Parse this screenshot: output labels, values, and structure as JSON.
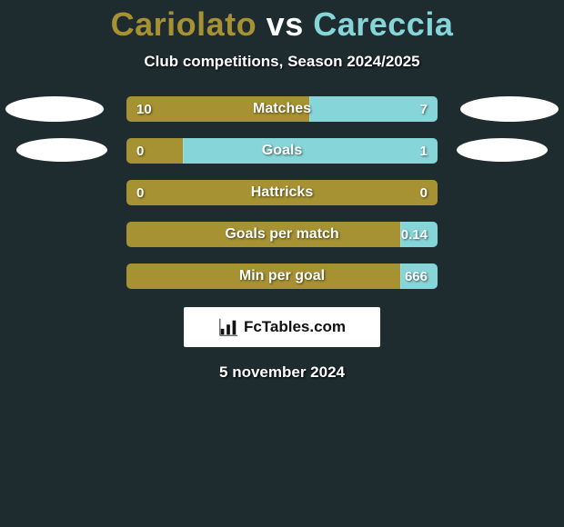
{
  "title": {
    "player1": "Cariolato",
    "vs": "vs",
    "player2": "Careccia",
    "color1": "#a69232",
    "color_vs": "#ffffff",
    "color2": "#86d5d8"
  },
  "subtitle": "Club competitions, Season 2024/2025",
  "colors": {
    "left": "#a69232",
    "right": "#86d5d8",
    "background": "#1e2c2f"
  },
  "stats": [
    {
      "label": "Matches",
      "left_text": "10",
      "right_text": "7",
      "left_pct": 58.8
    },
    {
      "label": "Goals",
      "left_text": "0",
      "right_text": "1",
      "left_pct": 18.0
    },
    {
      "label": "Hattricks",
      "left_text": "0",
      "right_text": "0",
      "left_pct": 100.0
    },
    {
      "label": "Goals per match",
      "left_text": "",
      "right_text": "0.14",
      "left_pct": 88.0
    },
    {
      "label": "Min per goal",
      "left_text": "",
      "right_text": "666",
      "left_pct": 88.0
    }
  ],
  "logo_text": "FcTables.com",
  "date": "5 november 2024"
}
